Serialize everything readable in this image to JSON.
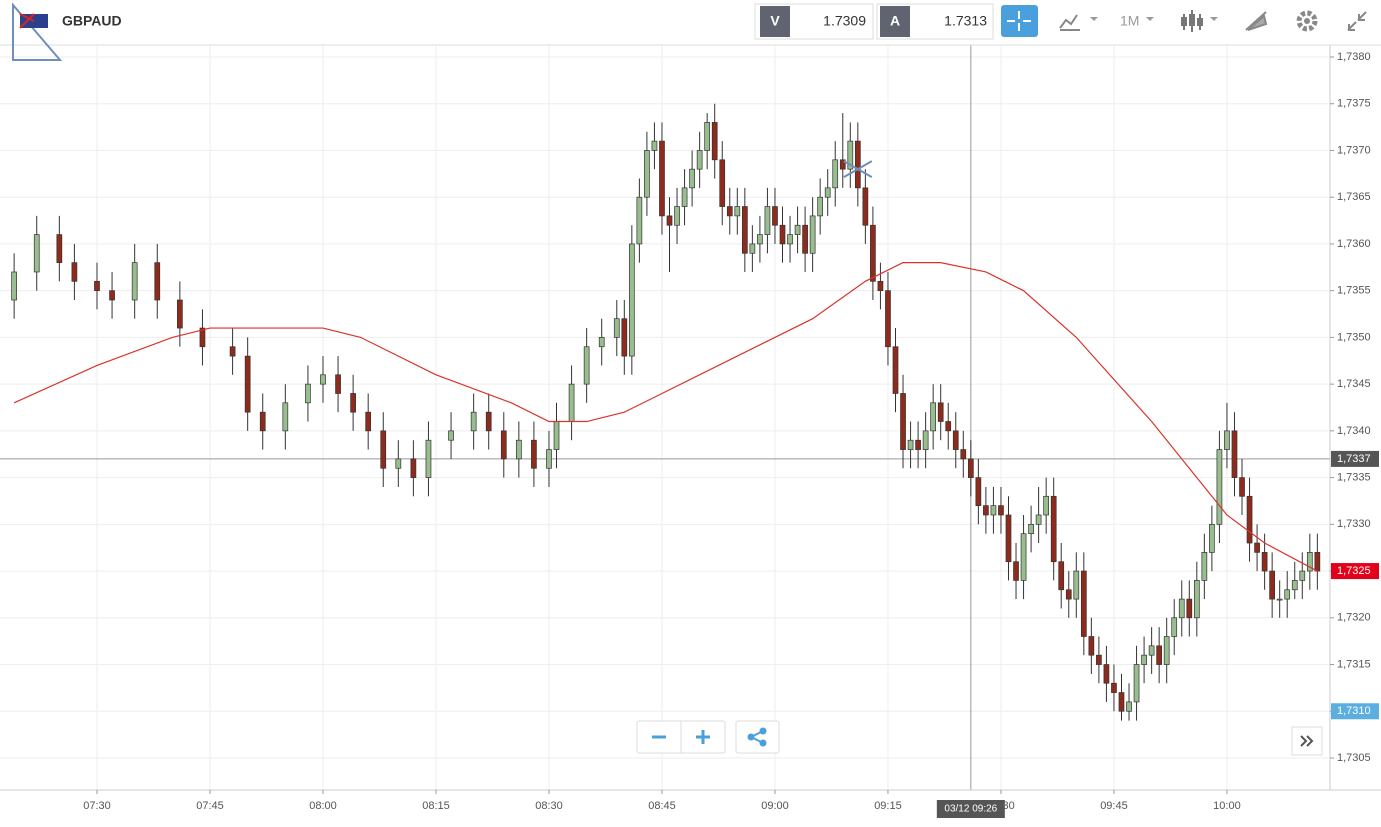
{
  "header": {
    "symbol": "GBPAUD",
    "sell_label": "V",
    "sell_price": "1.7309",
    "buy_label": "A",
    "buy_price": "1.7313",
    "timeframe": "1M"
  },
  "chart_data": {
    "type": "candlestick",
    "up_color": "#98bd8e",
    "down_color": "#8e2b1c",
    "x": [
      "07:19",
      "07:22",
      "07:25",
      "07:27",
      "07:30",
      "07:32",
      "07:35",
      "07:38",
      "07:41",
      "07:44",
      "07:48",
      "07:50",
      "07:52",
      "07:55",
      "07:58",
      "08:00",
      "08:02",
      "08:04",
      "08:06",
      "08:08",
      "08:10",
      "08:12",
      "08:14",
      "08:17",
      "08:20",
      "08:22",
      "08:24",
      "08:26",
      "08:28",
      "08:30",
      "08:31",
      "08:33",
      "08:35",
      "08:37",
      "08:39",
      "08:40",
      "08:41",
      "08:42",
      "08:43",
      "08:44",
      "08:45",
      "08:46",
      "08:47",
      "08:48",
      "08:49",
      "08:50",
      "08:51",
      "08:52",
      "08:53",
      "08:54",
      "08:55",
      "08:56",
      "08:57",
      "08:58",
      "08:59",
      "09:00",
      "09:01",
      "09:02",
      "09:03",
      "09:04",
      "09:05",
      "09:06",
      "09:07",
      "09:08",
      "09:09",
      "09:10",
      "09:11",
      "09:12",
      "09:13",
      "09:14",
      "09:15",
      "09:16",
      "09:17",
      "09:18",
      "09:19",
      "09:20",
      "09:21",
      "09:22",
      "09:23",
      "09:24",
      "09:25",
      "09:26",
      "09:27",
      "09:28",
      "09:29",
      "09:30",
      "09:31",
      "09:32",
      "09:33",
      "09:34",
      "09:35",
      "09:36",
      "09:37",
      "09:38",
      "09:39",
      "09:40",
      "09:41",
      "09:42",
      "09:43",
      "09:44",
      "09:45",
      "09:46",
      "09:47",
      "09:48",
      "09:49",
      "09:50",
      "09:51",
      "09:52",
      "09:53",
      "09:54",
      "09:55",
      "09:56",
      "09:57",
      "09:58",
      "09:59",
      "10:00",
      "10:01",
      "10:02",
      "10:03",
      "10:04",
      "10:05",
      "10:06",
      "10:07",
      "10:08",
      "10:09",
      "10:10",
      "10:11",
      "10:12"
    ],
    "ohlc": [
      [
        1.7354,
        1.7359,
        1.7352,
        1.7357
      ],
      [
        1.7357,
        1.7363,
        1.7355,
        1.7361
      ],
      [
        1.7361,
        1.7363,
        1.7356,
        1.7358
      ],
      [
        1.7358,
        1.736,
        1.7354,
        1.7356
      ],
      [
        1.7356,
        1.7358,
        1.7353,
        1.7355
      ],
      [
        1.7355,
        1.7357,
        1.7352,
        1.7354
      ],
      [
        1.7354,
        1.736,
        1.7352,
        1.7358
      ],
      [
        1.7358,
        1.736,
        1.7352,
        1.7354
      ],
      [
        1.7354,
        1.7356,
        1.7349,
        1.7351
      ],
      [
        1.7351,
        1.7353,
        1.7347,
        1.7349
      ],
      [
        1.7349,
        1.7351,
        1.7346,
        1.7348
      ],
      [
        1.7348,
        1.735,
        1.734,
        1.7342
      ],
      [
        1.7342,
        1.7344,
        1.7338,
        1.734
      ],
      [
        1.734,
        1.7345,
        1.7338,
        1.7343
      ],
      [
        1.7343,
        1.7347,
        1.7341,
        1.7345
      ],
      [
        1.7345,
        1.7348,
        1.7343,
        1.7346
      ],
      [
        1.7346,
        1.7348,
        1.7342,
        1.7344
      ],
      [
        1.7344,
        1.7346,
        1.734,
        1.7342
      ],
      [
        1.7342,
        1.7344,
        1.7338,
        1.734
      ],
      [
        1.734,
        1.7342,
        1.7334,
        1.7336
      ],
      [
        1.7336,
        1.7339,
        1.7334,
        1.7337
      ],
      [
        1.7337,
        1.7339,
        1.7333,
        1.7335
      ],
      [
        1.7335,
        1.7341,
        1.7333,
        1.7339
      ],
      [
        1.7339,
        1.7342,
        1.7337,
        1.734
      ],
      [
        1.734,
        1.7344,
        1.7338,
        1.7342
      ],
      [
        1.7342,
        1.7344,
        1.7338,
        1.734
      ],
      [
        1.734,
        1.7342,
        1.7335,
        1.7337
      ],
      [
        1.7337,
        1.7341,
        1.7335,
        1.7339
      ],
      [
        1.7339,
        1.7341,
        1.7334,
        1.7336
      ],
      [
        1.7336,
        1.734,
        1.7334,
        1.7338
      ],
      [
        1.7338,
        1.7343,
        1.7336,
        1.7341
      ],
      [
        1.7341,
        1.7347,
        1.7339,
        1.7345
      ],
      [
        1.7345,
        1.7351,
        1.7343,
        1.7349
      ],
      [
        1.7349,
        1.7352,
        1.7347,
        1.735
      ],
      [
        1.735,
        1.7354,
        1.7348,
        1.7352
      ],
      [
        1.7352,
        1.7354,
        1.7346,
        1.7348
      ],
      [
        1.7348,
        1.7362,
        1.7346,
        1.736
      ],
      [
        1.736,
        1.7367,
        1.7358,
        1.7365
      ],
      [
        1.7365,
        1.7372,
        1.7363,
        1.737
      ],
      [
        1.737,
        1.7373,
        1.7368,
        1.7371
      ],
      [
        1.7371,
        1.7373,
        1.7361,
        1.7363
      ],
      [
        1.7363,
        1.7365,
        1.7357,
        1.7362
      ],
      [
        1.7362,
        1.7366,
        1.736,
        1.7364
      ],
      [
        1.7364,
        1.7368,
        1.7362,
        1.7366
      ],
      [
        1.7366,
        1.737,
        1.7364,
        1.7368
      ],
      [
        1.7368,
        1.7372,
        1.7366,
        1.737
      ],
      [
        1.737,
        1.7374,
        1.7368,
        1.7373
      ],
      [
        1.7373,
        1.7375,
        1.7367,
        1.7369
      ],
      [
        1.7369,
        1.7371,
        1.7362,
        1.7364
      ],
      [
        1.7364,
        1.7366,
        1.7361,
        1.7363
      ],
      [
        1.7363,
        1.7366,
        1.7361,
        1.7364
      ],
      [
        1.7364,
        1.7366,
        1.7357,
        1.7359
      ],
      [
        1.7359,
        1.7362,
        1.7357,
        1.736
      ],
      [
        1.736,
        1.7363,
        1.7358,
        1.7361
      ],
      [
        1.7361,
        1.7366,
        1.7359,
        1.7364
      ],
      [
        1.7364,
        1.7366,
        1.736,
        1.7362
      ],
      [
        1.7362,
        1.7364,
        1.7358,
        1.736
      ],
      [
        1.736,
        1.7363,
        1.7358,
        1.7361
      ],
      [
        1.7361,
        1.7364,
        1.7359,
        1.7362
      ],
      [
        1.7362,
        1.7364,
        1.7357,
        1.7359
      ],
      [
        1.7359,
        1.7365,
        1.7357,
        1.7363
      ],
      [
        1.7363,
        1.7367,
        1.7361,
        1.7365
      ],
      [
        1.7365,
        1.7368,
        1.7363,
        1.7366
      ],
      [
        1.7366,
        1.7371,
        1.7364,
        1.7369
      ],
      [
        1.7369,
        1.7374,
        1.7366,
        1.7368
      ],
      [
        1.7368,
        1.7373,
        1.7366,
        1.7371
      ],
      [
        1.7371,
        1.7373,
        1.7364,
        1.7366
      ],
      [
        1.7366,
        1.7368,
        1.736,
        1.7362
      ],
      [
        1.7362,
        1.7364,
        1.7354,
        1.7356
      ],
      [
        1.7356,
        1.7358,
        1.7353,
        1.7355
      ],
      [
        1.7355,
        1.7357,
        1.7347,
        1.7349
      ],
      [
        1.7349,
        1.7351,
        1.7342,
        1.7344
      ],
      [
        1.7344,
        1.7346,
        1.7336,
        1.7338
      ],
      [
        1.7338,
        1.7341,
        1.7336,
        1.7339
      ],
      [
        1.7339,
        1.7341,
        1.7336,
        1.7338
      ],
      [
        1.7338,
        1.7342,
        1.7336,
        1.734
      ],
      [
        1.734,
        1.7345,
        1.7338,
        1.7343
      ],
      [
        1.7343,
        1.7345,
        1.7339,
        1.7341
      ],
      [
        1.7341,
        1.7343,
        1.7338,
        1.734
      ],
      [
        1.734,
        1.7342,
        1.7336,
        1.7338
      ],
      [
        1.7338,
        1.734,
        1.7335,
        1.7337
      ],
      [
        1.7337,
        1.7339,
        1.7333,
        1.7335
      ],
      [
        1.7335,
        1.7337,
        1.733,
        1.7332
      ],
      [
        1.7332,
        1.7334,
        1.7329,
        1.7331
      ],
      [
        1.7331,
        1.7334,
        1.7329,
        1.7332
      ],
      [
        1.7332,
        1.7334,
        1.7329,
        1.7331
      ],
      [
        1.7331,
        1.7333,
        1.7324,
        1.7326
      ],
      [
        1.7326,
        1.7328,
        1.7322,
        1.7324
      ],
      [
        1.7324,
        1.7331,
        1.7322,
        1.7329
      ],
      [
        1.7329,
        1.7332,
        1.7327,
        1.733
      ],
      [
        1.733,
        1.7334,
        1.7328,
        1.7331
      ],
      [
        1.7331,
        1.7335,
        1.7329,
        1.7333
      ],
      [
        1.7333,
        1.7335,
        1.7324,
        1.7326
      ],
      [
        1.7326,
        1.7328,
        1.7321,
        1.7323
      ],
      [
        1.7323,
        1.7325,
        1.732,
        1.7322
      ],
      [
        1.7322,
        1.7327,
        1.732,
        1.7325
      ],
      [
        1.7325,
        1.7327,
        1.7316,
        1.7318
      ],
      [
        1.7318,
        1.732,
        1.7314,
        1.7316
      ],
      [
        1.7316,
        1.7318,
        1.7313,
        1.7315
      ],
      [
        1.7315,
        1.7317,
        1.7311,
        1.7313
      ],
      [
        1.7313,
        1.7315,
        1.731,
        1.7312
      ],
      [
        1.7312,
        1.7314,
        1.7309,
        1.731
      ],
      [
        1.731,
        1.7313,
        1.7309,
        1.7311
      ],
      [
        1.7311,
        1.7317,
        1.7309,
        1.7315
      ],
      [
        1.7315,
        1.7318,
        1.7313,
        1.7316
      ],
      [
        1.7316,
        1.7319,
        1.7314,
        1.7317
      ],
      [
        1.7317,
        1.7319,
        1.7313,
        1.7315
      ],
      [
        1.7315,
        1.732,
        1.7313,
        1.7318
      ],
      [
        1.7318,
        1.7322,
        1.7316,
        1.732
      ],
      [
        1.732,
        1.7324,
        1.7318,
        1.7322
      ],
      [
        1.7322,
        1.7324,
        1.7318,
        1.732
      ],
      [
        1.732,
        1.7326,
        1.7318,
        1.7324
      ],
      [
        1.7324,
        1.7329,
        1.7322,
        1.7327
      ],
      [
        1.7327,
        1.7332,
        1.7325,
        1.733
      ],
      [
        1.733,
        1.734,
        1.7328,
        1.7338
      ],
      [
        1.7338,
        1.7343,
        1.7336,
        1.734
      ],
      [
        1.734,
        1.7342,
        1.7333,
        1.7335
      ],
      [
        1.7335,
        1.7337,
        1.7331,
        1.7333
      ],
      [
        1.7333,
        1.7335,
        1.7326,
        1.7328
      ],
      [
        1.7328,
        1.733,
        1.7325,
        1.7327
      ],
      [
        1.7327,
        1.7329,
        1.7323,
        1.7325
      ],
      [
        1.7325,
        1.7327,
        1.732,
        1.7322
      ],
      [
        1.7322,
        1.7324,
        1.732,
        1.7322
      ],
      [
        1.7322,
        1.7325,
        1.732,
        1.7323
      ],
      [
        1.7323,
        1.7326,
        1.7322,
        1.7324
      ],
      [
        1.7324,
        1.7327,
        1.7322,
        1.7325
      ],
      [
        1.7325,
        1.7329,
        1.7323,
        1.7327
      ],
      [
        1.7327,
        1.7329,
        1.7323,
        1.7325
      ]
    ],
    "ma": {
      "color": "#d9342b",
      "x": [
        "07:19",
        "07:30",
        "07:40",
        "07:45",
        "07:50",
        "08:00",
        "08:05",
        "08:15",
        "08:25",
        "08:30",
        "08:35",
        "08:40",
        "08:45",
        "08:55",
        "09:05",
        "09:12",
        "09:17",
        "09:22",
        "09:28",
        "09:33",
        "09:40",
        "09:50",
        "10:00",
        "10:05",
        "10:12"
      ],
      "values": [
        1.7343,
        1.7347,
        1.735,
        1.7351,
        1.7351,
        1.7351,
        1.735,
        1.7346,
        1.7343,
        1.7341,
        1.7341,
        1.7342,
        1.7344,
        1.7348,
        1.7352,
        1.7356,
        1.7358,
        1.7358,
        1.7357,
        1.7355,
        1.735,
        1.7341,
        1.7331,
        1.7328,
        1.7325
      ]
    },
    "ylim": [
      1.7305,
      1.738
    ],
    "yticks": [
      {
        "value": 1.7305,
        "label": "1,7305"
      },
      {
        "value": 1.731,
        "label": "1,7310"
      },
      {
        "value": 1.7315,
        "label": "1,7315"
      },
      {
        "value": 1.732,
        "label": "1,7320"
      },
      {
        "value": 1.7325,
        "label": "1,7325"
      },
      {
        "value": 1.733,
        "label": "1,7330"
      },
      {
        "value": 1.7335,
        "label": "1,7335"
      },
      {
        "value": 1.734,
        "label": "1,7340"
      },
      {
        "value": 1.7345,
        "label": "1,7345"
      },
      {
        "value": 1.735,
        "label": "1,7350"
      },
      {
        "value": 1.7355,
        "label": "1,7355"
      },
      {
        "value": 1.736,
        "label": "1,7360"
      },
      {
        "value": 1.7365,
        "label": "1,7365"
      },
      {
        "value": 1.737,
        "label": "1,7370"
      },
      {
        "value": 1.7375,
        "label": "1,7375"
      },
      {
        "value": 1.738,
        "label": "1,7380"
      }
    ],
    "xticks": [
      "07:30",
      "07:45",
      "08:00",
      "08:15",
      "08:30",
      "08:45",
      "09:00",
      "09:15",
      "09:30",
      "09:45",
      "10:00"
    ],
    "grid": true,
    "crosshair": {
      "x_label": "03/12 09:26",
      "y": {
        "value": 1.7337,
        "label": "1,7337"
      }
    },
    "last_price": {
      "value": 1.7325,
      "label": "1,7325",
      "color": "#e3001b"
    },
    "marker_price": {
      "value": 1.731,
      "label": "1,7310",
      "color": "#5aaee0"
    }
  }
}
